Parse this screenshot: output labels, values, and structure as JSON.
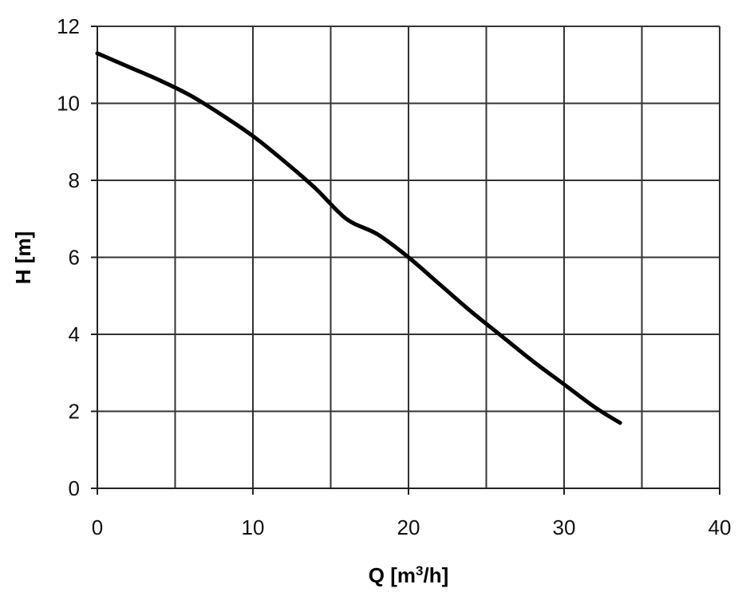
{
  "chart_data": {
    "type": "line",
    "xlabel": "Q [m³/h]",
    "ylabel": "H [m]",
    "xlim": [
      0,
      40
    ],
    "ylim": [
      0,
      12
    ],
    "xticks": [
      0,
      10,
      20,
      30,
      40
    ],
    "yticks": [
      0,
      2,
      4,
      6,
      8,
      10,
      12
    ],
    "xtick_labels": [
      "0",
      "10",
      "20",
      "30",
      "40"
    ],
    "ytick_labels": [
      "0",
      "2",
      "4",
      "6",
      "8",
      "10",
      "12"
    ],
    "grid": true,
    "vertical_gridlines_at": [
      5,
      10,
      15,
      20,
      25,
      30,
      35,
      40
    ],
    "series": [
      {
        "x": [
          0,
          2,
          4,
          6,
          8,
          10,
          12,
          14,
          16,
          18,
          20,
          22,
          24,
          26,
          28,
          30,
          32,
          33.6
        ],
        "y": [
          11.3,
          10.95,
          10.6,
          10.2,
          9.7,
          9.15,
          8.5,
          7.8,
          7.0,
          6.6,
          6.0,
          5.3,
          4.6,
          3.95,
          3.3,
          2.7,
          2.1,
          1.7
        ]
      }
    ]
  }
}
